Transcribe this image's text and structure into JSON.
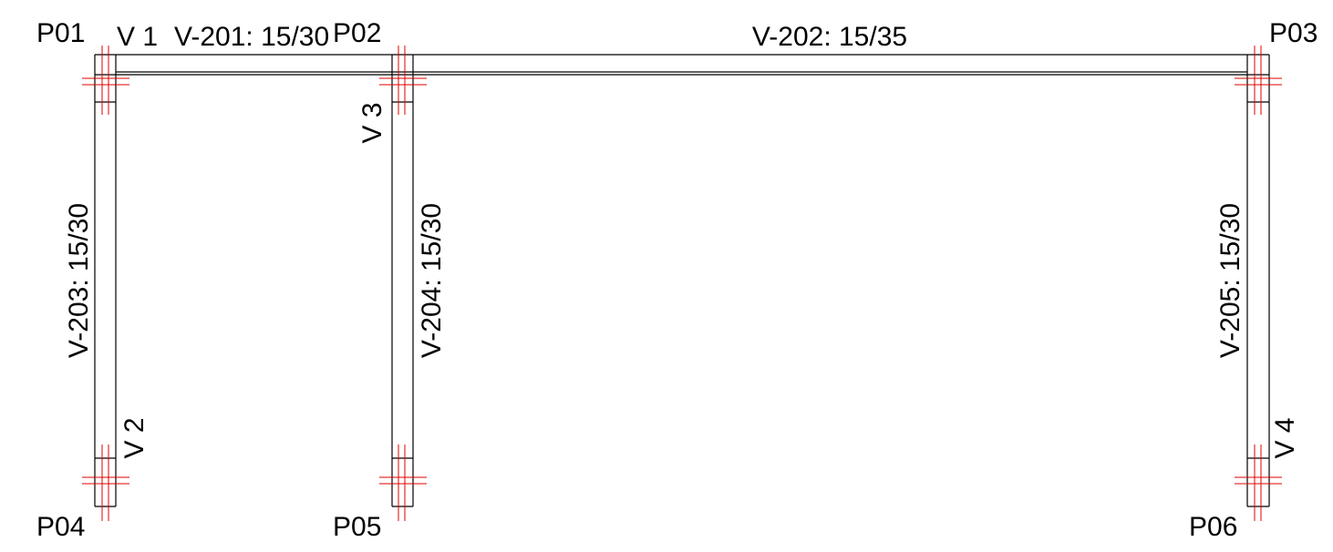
{
  "colors": {
    "structure": "#000000",
    "axis": "#e00000",
    "background": "#ffffff"
  },
  "pillars": {
    "p01": "P01",
    "p02": "P02",
    "p03": "P03",
    "p04": "P04",
    "p05": "P05",
    "p06": "P06"
  },
  "beams": {
    "v201": "V-201: 15/30",
    "v202": "V-202: 15/35",
    "v203": "V-203: 15/30",
    "v204": "V-204: 15/30",
    "v205": "V-205: 15/30"
  },
  "sections": {
    "v1": "V 1",
    "v2": "V 2",
    "v3": "V 3",
    "v4": "V 4"
  }
}
